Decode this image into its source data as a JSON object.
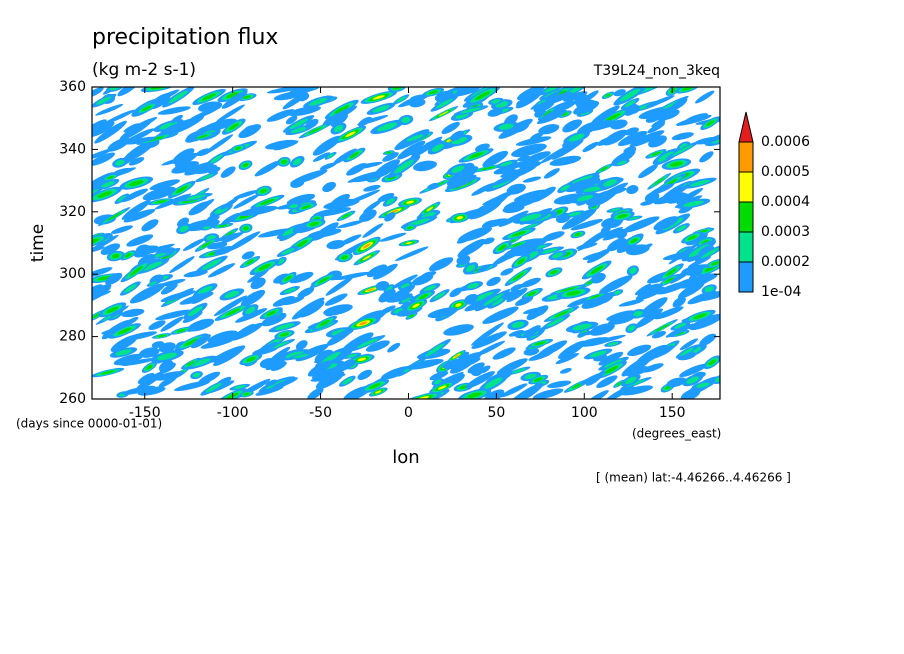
{
  "chart_data": {
    "type": "contour",
    "title": "precipitation flux",
    "subtitle": "(kg m-2 s-1)",
    "experiment": "T39L24_non_3keq",
    "x_label": "lon",
    "x_units": "(degrees_east)",
    "y_label": "time",
    "y_units": "(days since 0000-01-01)",
    "note": "[ (mean) lat:-4.46266..4.46266 ]",
    "xlim": [
      -180,
      177.1875
    ],
    "xticks": [
      -150,
      -100,
      -50,
      0,
      50,
      100,
      150
    ],
    "ylim": [
      260,
      360
    ],
    "yticks": [
      260,
      280,
      300,
      320,
      340,
      360
    ],
    "levels": [
      {
        "value": 0.0001,
        "label": "1e-04"
      },
      0.0002,
      0.0003,
      0.0004,
      0.0005,
      0.0006
    ],
    "colors": [
      "#1e9bff",
      "#00e38c",
      "#00dc00",
      "#ffff00",
      "#ff9b00",
      "#e41e1e"
    ]
  }
}
